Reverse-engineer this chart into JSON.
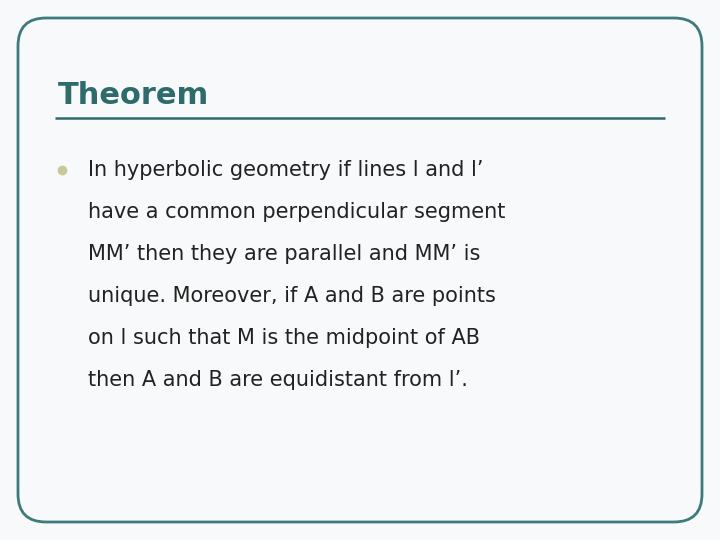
{
  "title": "Theorem",
  "title_color": "#2E6B6B",
  "title_fontsize": 22,
  "divider_color": "#2E6B6B",
  "bullet_color": "#C8C89A",
  "body_fontsize": 15,
  "body_color": "#222222",
  "background_color": "#F8F9FA",
  "border_color": "#3D7A7A",
  "border_linewidth": 2.0,
  "lines": [
    "In hyperbolic geometry if lines l and l’",
    "have a common perpendicular segment",
    "MM’ then they are parallel and MM’ is",
    "unique. Moreover, if A and B are points",
    "on l such that M is the midpoint of AB",
    "then A and B are equidistant from l’."
  ]
}
